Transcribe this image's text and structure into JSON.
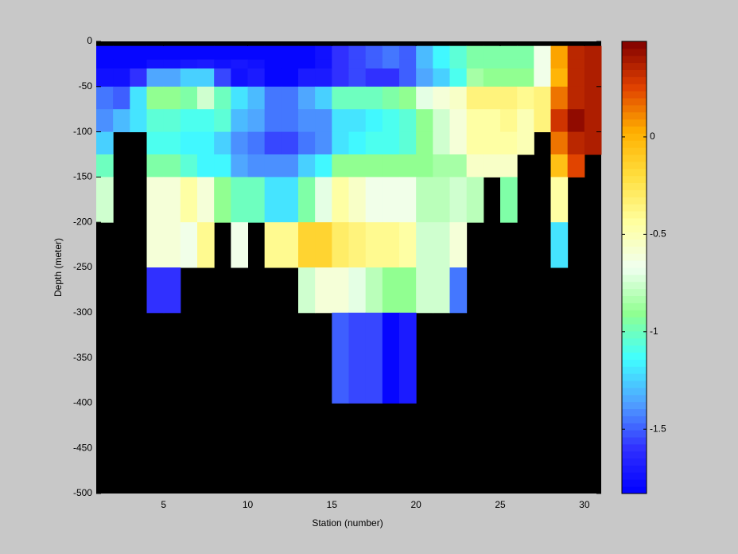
{
  "chart_data": {
    "type": "heatmap",
    "xlabel": "Station (number)",
    "ylabel": "Depth (meter)",
    "x": [
      1,
      2,
      3,
      4,
      5,
      6,
      7,
      8,
      9,
      10,
      11,
      12,
      13,
      14,
      15,
      16,
      17,
      18,
      19,
      20,
      21,
      22,
      23,
      24,
      25,
      26,
      27,
      28,
      29,
      30,
      31
    ],
    "y": [
      -5,
      -20,
      -30,
      -50,
      -75,
      -100,
      -125,
      -150,
      -200,
      -250,
      -300,
      -400
    ],
    "z": [
      [
        -1.8,
        -1.8,
        -1.8,
        -1.8,
        -1.8,
        -1.8,
        -1.8,
        -1.8,
        -1.8,
        -1.8,
        -1.8,
        -1.8,
        -1.8,
        -1.75,
        -1.6,
        -1.55,
        -1.5,
        -1.45,
        -1.5,
        -1.3,
        -1.15,
        -1.05,
        -0.95,
        -0.95,
        -0.95,
        -0.95,
        -0.65,
        0.05,
        0.35,
        0.38
      ],
      [
        -1.8,
        -1.8,
        -1.8,
        -1.75,
        -1.75,
        -1.72,
        -1.7,
        -1.75,
        -1.72,
        -1.75,
        -1.8,
        -1.8,
        -1.8,
        -1.75,
        -1.6,
        -1.55,
        -1.5,
        -1.45,
        -1.5,
        -1.3,
        -1.15,
        -1.05,
        -0.95,
        -0.95,
        -0.95,
        -0.95,
        -0.65,
        0.05,
        0.35,
        0.38
      ],
      [
        -1.75,
        -1.75,
        -1.6,
        -1.35,
        -1.35,
        -1.25,
        -1.25,
        -1.55,
        -1.75,
        -1.7,
        -1.8,
        -1.8,
        -1.7,
        -1.7,
        -1.6,
        -1.55,
        -1.6,
        -1.6,
        -1.5,
        -1.35,
        -1.25,
        -1.1,
        -0.85,
        -0.9,
        -0.9,
        -0.9,
        -0.65,
        0.0,
        0.35,
        0.38
      ],
      [
        -1.45,
        -1.5,
        -1.2,
        -0.9,
        -0.9,
        -0.95,
        -0.75,
        -1.0,
        -1.2,
        -1.3,
        -1.45,
        -1.45,
        -1.35,
        -1.25,
        -1.0,
        -1.0,
        -1.0,
        -0.95,
        -0.9,
        -0.7,
        -0.6,
        -0.55,
        -0.35,
        -0.35,
        -0.35,
        -0.4,
        -0.35,
        0.15,
        0.35,
        0.38
      ],
      [
        -1.4,
        -1.3,
        -1.2,
        -1.05,
        -1.05,
        -1.1,
        -1.1,
        -1.05,
        -1.3,
        -1.35,
        -1.45,
        -1.45,
        -1.4,
        -1.4,
        -1.2,
        -1.2,
        -1.15,
        -1.1,
        -1.05,
        -0.9,
        -0.75,
        -0.6,
        -0.45,
        -0.45,
        -0.4,
        -0.5,
        -0.35,
        0.3,
        0.45,
        0.38
      ],
      [
        -1.25,
        null,
        null,
        -1.1,
        -1.1,
        -1.15,
        -1.15,
        -1.25,
        -1.4,
        -1.45,
        -1.55,
        -1.55,
        -1.45,
        -1.4,
        -1.2,
        -1.15,
        -1.1,
        -1.1,
        -1.05,
        -0.9,
        -0.75,
        -0.6,
        -0.45,
        -0.45,
        -0.45,
        -0.5,
        null,
        0.15,
        0.35,
        0.38
      ],
      [
        -1.0,
        null,
        null,
        -0.95,
        -0.95,
        -1.05,
        -1.15,
        -1.15,
        -1.35,
        -1.4,
        -1.4,
        -1.4,
        -1.25,
        -1.15,
        -0.9,
        -0.9,
        -0.9,
        -0.9,
        -0.9,
        -0.9,
        -0.85,
        -0.85,
        -0.55,
        -0.55,
        -0.55,
        null,
        null,
        -0.05,
        0.25,
        null
      ],
      [
        -0.75,
        null,
        null,
        -0.6,
        -0.6,
        -0.45,
        -0.6,
        -0.9,
        -1.0,
        -1.0,
        -1.2,
        -1.2,
        -0.95,
        -0.7,
        -0.45,
        -0.55,
        -0.65,
        -0.65,
        -0.65,
        -0.8,
        -0.8,
        -0.75,
        -0.8,
        null,
        -0.95,
        null,
        null,
        -0.45,
        null,
        null
      ],
      [
        null,
        null,
        null,
        -0.6,
        -0.6,
        -0.65,
        -0.4,
        null,
        -0.65,
        null,
        -0.4,
        -0.4,
        -0.15,
        -0.15,
        -0.3,
        -0.35,
        -0.4,
        -0.4,
        -0.45,
        -0.75,
        -0.75,
        -0.6,
        null,
        null,
        null,
        null,
        null,
        -1.2,
        null,
        null
      ],
      [
        null,
        null,
        null,
        -1.6,
        -1.6,
        null,
        null,
        null,
        null,
        null,
        null,
        null,
        -0.75,
        -0.6,
        -0.6,
        -0.7,
        -0.8,
        -0.9,
        -0.9,
        -0.75,
        -0.75,
        -1.45,
        null,
        null,
        null,
        null,
        null,
        null,
        null,
        null
      ],
      [
        null,
        null,
        null,
        null,
        null,
        null,
        null,
        null,
        null,
        null,
        null,
        null,
        null,
        null,
        -1.5,
        -1.55,
        -1.55,
        -1.8,
        -1.7,
        null,
        null,
        null,
        null,
        null,
        null,
        null,
        null,
        null,
        null,
        null
      ]
    ],
    "xlim": [
      1,
      31
    ],
    "ylim": [
      -500,
      0
    ],
    "xticks": [
      5,
      10,
      15,
      20,
      25,
      30
    ],
    "yticks": [
      0,
      -50,
      -100,
      -150,
      -200,
      -250,
      -300,
      -350,
      -400,
      -450,
      -500
    ],
    "clim": [
      -1.83,
      0.49
    ],
    "cticks": [
      0,
      -0.5,
      -1,
      -1.5
    ],
    "colormap": [
      "#0000ff",
      "#3030ff",
      "#50a0ff",
      "#40ffff",
      "#90ff90",
      "#f0fff0",
      "#ffffa0",
      "#ffe040",
      "#ffb000",
      "#e04000",
      "#800000"
    ],
    "background": "#000000"
  }
}
